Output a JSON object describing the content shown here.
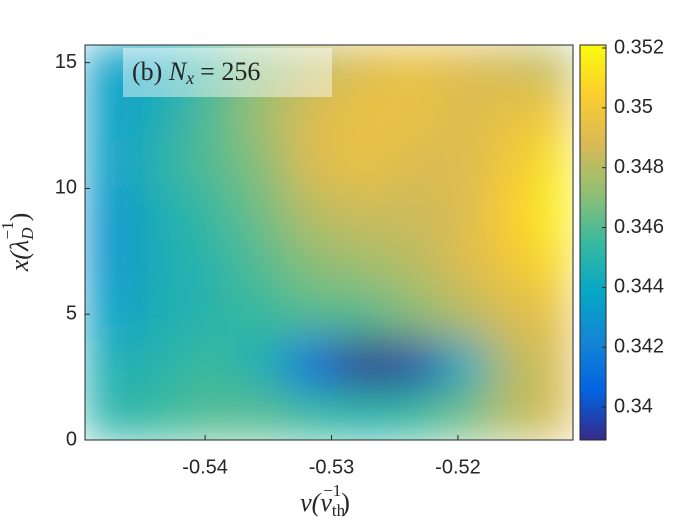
{
  "chart_data": {
    "type": "heatmap",
    "annotation": {
      "label": "(b)",
      "lhs": "N",
      "sub": "x",
      "rhs": "= 256"
    },
    "x_label": {
      "main": "v(v",
      "sub": "th",
      "sup": "−1",
      "close": ")"
    },
    "y_label": {
      "main": "x(λ",
      "sub": "D",
      "sup": "−1",
      "close": ")"
    },
    "xlim": [
      -0.5495,
      -0.5109
    ],
    "xticks": [
      -0.54,
      -0.53,
      -0.52
    ],
    "ylim": [
      0,
      15.7
    ],
    "yticks": [
      0,
      5,
      10,
      15
    ],
    "clim": [
      0.3389,
      0.3521
    ],
    "cticks": [
      0.34,
      0.342,
      0.344,
      0.346,
      0.348,
      0.35,
      0.352
    ],
    "colormap": [
      "#352a87",
      "#0363e1",
      "#1485d4",
      "#06a7c6",
      "#38b99e",
      "#92bf73",
      "#d9ba56",
      "#fcce2e",
      "#f9fb0e"
    ],
    "x": [
      -0.5475,
      -0.5435,
      -0.5395,
      -0.5355,
      -0.5315,
      -0.5275,
      -0.5235,
      -0.5195,
      -0.5155,
      -0.5115
    ],
    "y": [
      15,
      13,
      11,
      9,
      7,
      5,
      3,
      1
    ],
    "z": [
      [
        0.3435,
        0.344,
        0.3455,
        0.347,
        0.348,
        0.349,
        0.3495,
        0.349,
        0.3485,
        0.348
      ],
      [
        0.3435,
        0.3445,
        0.346,
        0.3475,
        0.349,
        0.3495,
        0.3495,
        0.349,
        0.3495,
        0.35
      ],
      [
        0.3435,
        0.345,
        0.346,
        0.347,
        0.349,
        0.3495,
        0.349,
        0.349,
        0.35,
        0.3515
      ],
      [
        0.343,
        0.3445,
        0.3455,
        0.3465,
        0.348,
        0.3485,
        0.3485,
        0.349,
        0.3505,
        0.352
      ],
      [
        0.343,
        0.3445,
        0.345,
        0.346,
        0.347,
        0.3475,
        0.348,
        0.349,
        0.35,
        0.351
      ],
      [
        0.3435,
        0.3445,
        0.345,
        0.3455,
        0.346,
        0.346,
        0.347,
        0.348,
        0.349,
        0.3495
      ],
      [
        0.3445,
        0.345,
        0.3455,
        0.3445,
        0.341,
        0.339,
        0.3395,
        0.344,
        0.348,
        0.349
      ],
      [
        0.345,
        0.3455,
        0.346,
        0.346,
        0.3455,
        0.345,
        0.3455,
        0.3465,
        0.348,
        0.349
      ]
    ]
  }
}
